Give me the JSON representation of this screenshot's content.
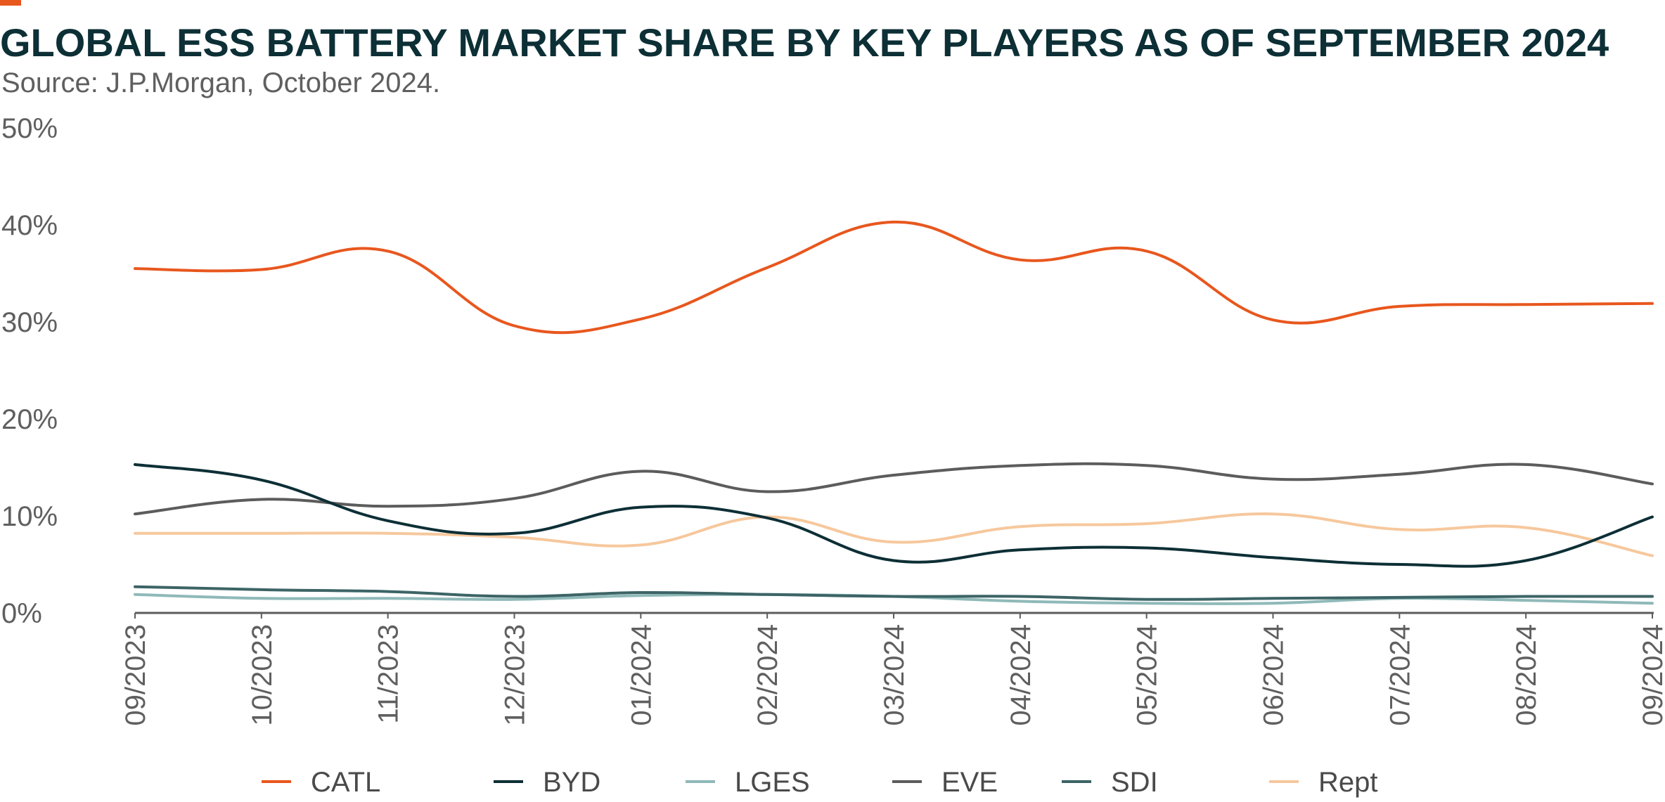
{
  "header": {
    "title": "GLOBAL ESS BATTERY MARKET SHARE BY KEY PLAYERS AS OF SEPTEMBER 2024",
    "subtitle": "Source: J.P.Morgan, October 2024.",
    "accent_color": "#e8571e"
  },
  "chart_data": {
    "type": "line",
    "title": "GLOBAL ESS BATTERY MARKET SHARE BY KEY PLAYERS AS OF SEPTEMBER 2024",
    "xlabel": "",
    "ylabel": "",
    "ylim": [
      0,
      50
    ],
    "y_ticks": [
      "0%",
      "10%",
      "20%",
      "30%",
      "40%",
      "50%"
    ],
    "y_tick_values": [
      0,
      10,
      20,
      30,
      40,
      50
    ],
    "grid": false,
    "legend_position": "bottom",
    "categories": [
      "09/2023",
      "10/2023",
      "11/2023",
      "12/2023",
      "01/2024",
      "02/2024",
      "03/2024",
      "04/2024",
      "05/2024",
      "06/2024",
      "07/2024",
      "08/2024",
      "09/2024"
    ],
    "series": [
      {
        "name": "CATL",
        "color": "#e8571e",
        "values": [
          35.5,
          35.4,
          37.3,
          29.6,
          30.3,
          35.6,
          40.3,
          36.4,
          37.3,
          30.2,
          31.6,
          31.8,
          31.9
        ]
      },
      {
        "name": "BYD",
        "color": "#0d2f36",
        "values": [
          15.3,
          13.7,
          9.5,
          8.2,
          10.9,
          9.8,
          5.4,
          6.5,
          6.7,
          5.7,
          5.0,
          5.4,
          9.9
        ]
      },
      {
        "name": "LGES",
        "color": "#8fb9b8",
        "values": [
          1.9,
          1.5,
          1.5,
          1.4,
          1.8,
          1.9,
          1.7,
          1.2,
          1.0,
          1.0,
          1.5,
          1.3,
          1.0
        ]
      },
      {
        "name": "EVE",
        "color": "#5c5c5c",
        "values": [
          10.2,
          11.7,
          11.0,
          11.8,
          14.6,
          12.5,
          14.2,
          15.2,
          15.2,
          13.8,
          14.3,
          15.3,
          13.3
        ]
      },
      {
        "name": "SDI",
        "color": "#3d6466",
        "values": [
          2.7,
          2.4,
          2.2,
          1.7,
          2.1,
          1.9,
          1.7,
          1.7,
          1.4,
          1.5,
          1.6,
          1.7,
          1.7
        ]
      },
      {
        "name": "Rept",
        "color": "#f6c89d",
        "values": [
          8.2,
          8.2,
          8.2,
          7.8,
          7.0,
          9.9,
          7.3,
          8.9,
          9.2,
          10.2,
          8.6,
          8.8,
          5.9
        ]
      }
    ]
  }
}
